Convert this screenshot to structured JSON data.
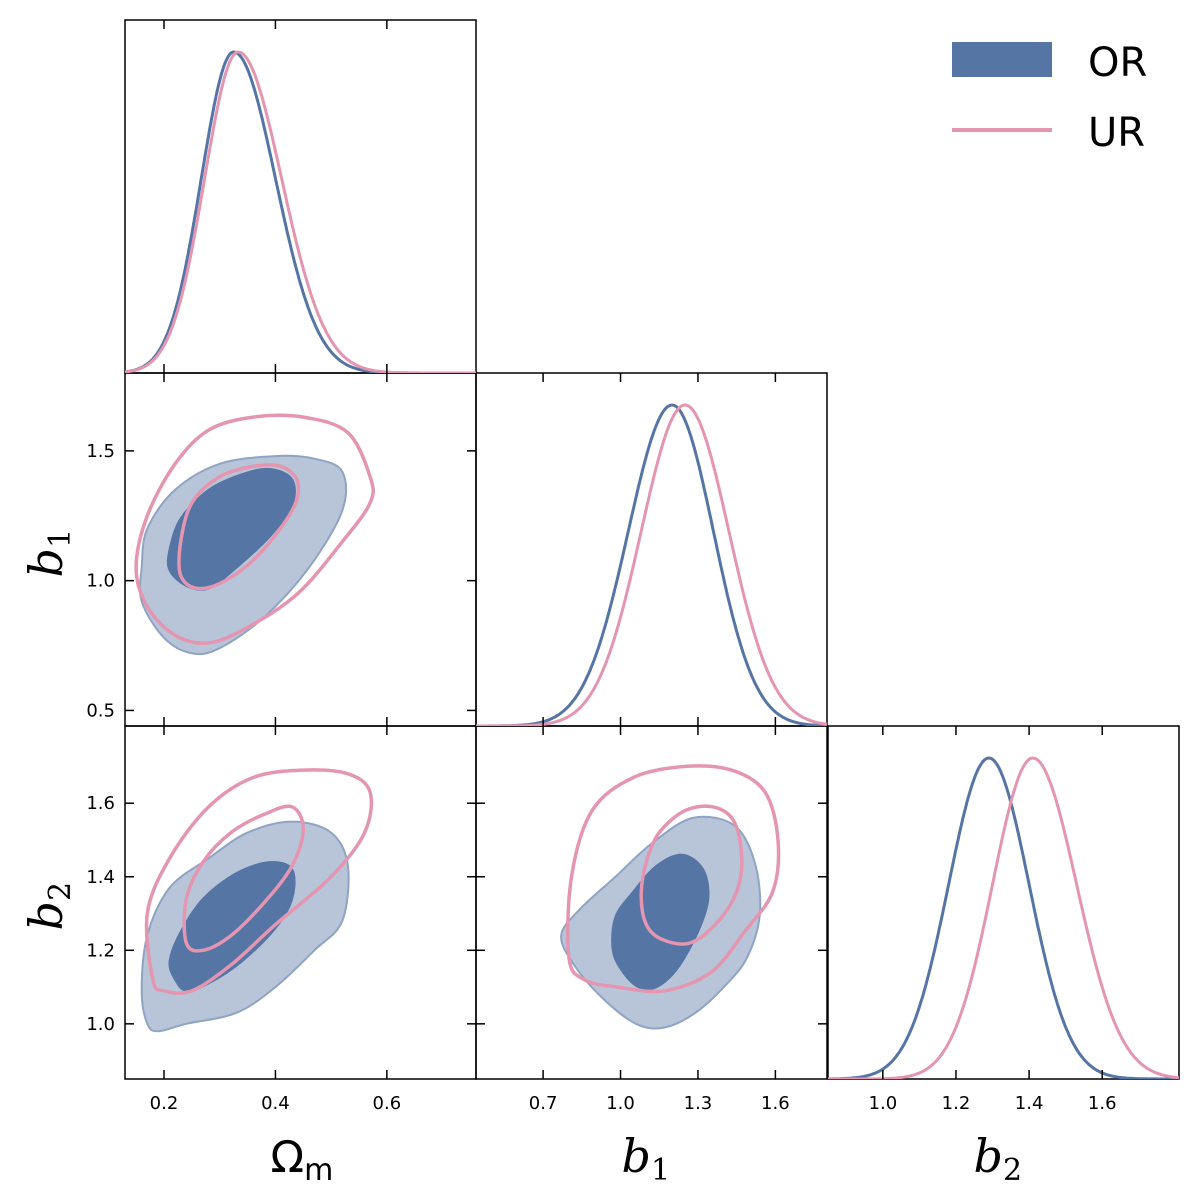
{
  "chart_data": {
    "type": "corner",
    "colors": {
      "OR": "#5575a5",
      "OR_light": "#b8c5d9",
      "UR": "#e495b0"
    },
    "legend": {
      "placement": "top-right",
      "entries": [
        {
          "label": "OR",
          "style": "filled"
        },
        {
          "label": "UR",
          "style": "line"
        }
      ]
    },
    "parameters": [
      {
        "name": "Omega_m",
        "label": "Ω",
        "label_sub": "m",
        "range": [
          0.13,
          0.76
        ],
        "ticks": [
          0.2,
          0.4,
          0.6
        ],
        "tick_labels": [
          "0.2",
          "0.4",
          "0.6"
        ]
      },
      {
        "name": "b1",
        "label": "b",
        "label_sub": "1",
        "range": [
          0.44,
          1.8
        ],
        "ticks": [
          0.5,
          1.0,
          1.5
        ],
        "tick_labels": [
          "0.5",
          "1.0",
          "1.5"
        ],
        "x_ticks": [
          0.7,
          1.0,
          1.3,
          1.6
        ],
        "x_tick_labels": [
          "0.7",
          "1.0",
          "1.3",
          "1.6"
        ]
      },
      {
        "name": "b2",
        "label": "b",
        "label_sub": "2",
        "range": [
          0.85,
          1.81
        ],
        "ticks": [
          1.0,
          1.2,
          1.4,
          1.6
        ],
        "tick_labels": [
          "1.0",
          "1.2",
          "1.4",
          "1.6"
        ]
      }
    ],
    "marginals": [
      {
        "param": "Omega_m",
        "series": [
          {
            "name": "OR",
            "mean": 0.325,
            "sigma_left": 0.058,
            "sigma_right": 0.075
          },
          {
            "name": "UR",
            "mean": 0.333,
            "sigma_left": 0.06,
            "sigma_right": 0.078
          }
        ]
      },
      {
        "param": "b1",
        "series": [
          {
            "name": "OR",
            "mean": 1.2,
            "sigma_left": 0.17,
            "sigma_right": 0.16
          },
          {
            "name": "UR",
            "mean": 1.25,
            "sigma_left": 0.17,
            "sigma_right": 0.17
          }
        ]
      },
      {
        "param": "b2",
        "series": [
          {
            "name": "OR",
            "mean": 1.29,
            "sigma_left": 0.11,
            "sigma_right": 0.11
          },
          {
            "name": "UR",
            "mean": 1.41,
            "sigma_left": 0.11,
            "sigma_right": 0.12
          }
        ]
      }
    ],
    "contours": [
      {
        "x": "Omega_m",
        "y": "b1",
        "OR_95": [
          [
            0.16,
            1.05
          ],
          [
            0.17,
            1.2
          ],
          [
            0.22,
            1.35
          ],
          [
            0.3,
            1.45
          ],
          [
            0.4,
            1.48
          ],
          [
            0.47,
            1.47
          ],
          [
            0.52,
            1.42
          ],
          [
            0.52,
            1.27
          ],
          [
            0.46,
            1.05
          ],
          [
            0.38,
            0.86
          ],
          [
            0.3,
            0.74
          ],
          [
            0.25,
            0.72
          ],
          [
            0.2,
            0.78
          ],
          [
            0.16,
            0.92
          ]
        ],
        "OR_68": [
          [
            0.21,
            1.12
          ],
          [
            0.23,
            1.24
          ],
          [
            0.28,
            1.35
          ],
          [
            0.34,
            1.41
          ],
          [
            0.39,
            1.43
          ],
          [
            0.43,
            1.39
          ],
          [
            0.43,
            1.29
          ],
          [
            0.39,
            1.17
          ],
          [
            0.33,
            1.05
          ],
          [
            0.28,
            0.97
          ],
          [
            0.24,
            0.98
          ],
          [
            0.21,
            1.04
          ]
        ],
        "UR_95": [
          [
            0.15,
            1.05
          ],
          [
            0.17,
            1.25
          ],
          [
            0.22,
            1.45
          ],
          [
            0.28,
            1.58
          ],
          [
            0.36,
            1.63
          ],
          [
            0.45,
            1.63
          ],
          [
            0.53,
            1.57
          ],
          [
            0.57,
            1.4
          ],
          [
            0.57,
            1.3
          ],
          [
            0.52,
            1.15
          ],
          [
            0.44,
            0.95
          ],
          [
            0.35,
            0.82
          ],
          [
            0.28,
            0.76
          ],
          [
            0.22,
            0.79
          ],
          [
            0.17,
            0.9
          ]
        ],
        "UR_68": [
          [
            0.23,
            1.15
          ],
          [
            0.25,
            1.3
          ],
          [
            0.3,
            1.4
          ],
          [
            0.36,
            1.44
          ],
          [
            0.41,
            1.44
          ],
          [
            0.44,
            1.38
          ],
          [
            0.43,
            1.27
          ],
          [
            0.37,
            1.1
          ],
          [
            0.31,
            1.0
          ],
          [
            0.26,
            0.97
          ],
          [
            0.23,
            1.02
          ]
        ]
      },
      {
        "x": "Omega_m",
        "y": "b2",
        "OR_95": [
          [
            0.17,
            1.0
          ],
          [
            0.19,
            0.98
          ],
          [
            0.24,
            1.0
          ],
          [
            0.33,
            1.03
          ],
          [
            0.4,
            1.1
          ],
          [
            0.47,
            1.2
          ],
          [
            0.52,
            1.28
          ],
          [
            0.53,
            1.43
          ],
          [
            0.5,
            1.52
          ],
          [
            0.43,
            1.55
          ],
          [
            0.35,
            1.52
          ],
          [
            0.28,
            1.45
          ],
          [
            0.21,
            1.37
          ],
          [
            0.17,
            1.24
          ],
          [
            0.16,
            1.09
          ]
        ],
        "OR_68": [
          [
            0.22,
            1.12
          ],
          [
            0.24,
            1.09
          ],
          [
            0.28,
            1.11
          ],
          [
            0.34,
            1.17
          ],
          [
            0.4,
            1.26
          ],
          [
            0.43,
            1.34
          ],
          [
            0.43,
            1.42
          ],
          [
            0.39,
            1.44
          ],
          [
            0.33,
            1.41
          ],
          [
            0.27,
            1.34
          ],
          [
            0.23,
            1.25
          ],
          [
            0.21,
            1.17
          ]
        ],
        "UR_95": [
          [
            0.18,
            1.12
          ],
          [
            0.2,
            1.09
          ],
          [
            0.25,
            1.09
          ],
          [
            0.32,
            1.16
          ],
          [
            0.4,
            1.27
          ],
          [
            0.5,
            1.4
          ],
          [
            0.56,
            1.52
          ],
          [
            0.57,
            1.63
          ],
          [
            0.53,
            1.68
          ],
          [
            0.45,
            1.69
          ],
          [
            0.36,
            1.67
          ],
          [
            0.28,
            1.59
          ],
          [
            0.21,
            1.45
          ],
          [
            0.17,
            1.3
          ]
        ],
        "UR_68": [
          [
            0.24,
            1.22
          ],
          [
            0.27,
            1.2
          ],
          [
            0.32,
            1.24
          ],
          [
            0.38,
            1.33
          ],
          [
            0.43,
            1.43
          ],
          [
            0.45,
            1.53
          ],
          [
            0.43,
            1.59
          ],
          [
            0.38,
            1.57
          ],
          [
            0.32,
            1.52
          ],
          [
            0.27,
            1.44
          ],
          [
            0.24,
            1.34
          ]
        ]
      },
      {
        "x": "b1",
        "y": "b2",
        "OR_95": [
          [
            0.77,
            1.24
          ],
          [
            0.82,
            1.16
          ],
          [
            0.93,
            1.07
          ],
          [
            1.06,
            1.0
          ],
          [
            1.17,
            0.99
          ],
          [
            1.29,
            1.03
          ],
          [
            1.4,
            1.1
          ],
          [
            1.49,
            1.18
          ],
          [
            1.54,
            1.3
          ],
          [
            1.52,
            1.44
          ],
          [
            1.44,
            1.54
          ],
          [
            1.28,
            1.56
          ],
          [
            1.12,
            1.49
          ],
          [
            0.98,
            1.4
          ],
          [
            0.84,
            1.31
          ]
        ],
        "OR_68": [
          [
            0.97,
            1.2
          ],
          [
            1.01,
            1.14
          ],
          [
            1.07,
            1.1
          ],
          [
            1.14,
            1.1
          ],
          [
            1.22,
            1.15
          ],
          [
            1.3,
            1.25
          ],
          [
            1.34,
            1.34
          ],
          [
            1.32,
            1.42
          ],
          [
            1.24,
            1.46
          ],
          [
            1.14,
            1.43
          ],
          [
            1.05,
            1.36
          ],
          [
            0.98,
            1.29
          ]
        ],
        "UR_95": [
          [
            0.8,
            1.18
          ],
          [
            0.86,
            1.12
          ],
          [
            0.99,
            1.1
          ],
          [
            1.17,
            1.09
          ],
          [
            1.35,
            1.14
          ],
          [
            1.48,
            1.25
          ],
          [
            1.59,
            1.36
          ],
          [
            1.61,
            1.5
          ],
          [
            1.56,
            1.63
          ],
          [
            1.43,
            1.69
          ],
          [
            1.25,
            1.7
          ],
          [
            1.05,
            1.67
          ],
          [
            0.89,
            1.58
          ],
          [
            0.81,
            1.4
          ]
        ],
        "UR_68": [
          [
            1.08,
            1.35
          ],
          [
            1.1,
            1.27
          ],
          [
            1.16,
            1.23
          ],
          [
            1.27,
            1.22
          ],
          [
            1.38,
            1.28
          ],
          [
            1.45,
            1.36
          ],
          [
            1.47,
            1.45
          ],
          [
            1.44,
            1.55
          ],
          [
            1.36,
            1.59
          ],
          [
            1.25,
            1.58
          ],
          [
            1.15,
            1.52
          ],
          [
            1.1,
            1.44
          ]
        ]
      }
    ]
  }
}
